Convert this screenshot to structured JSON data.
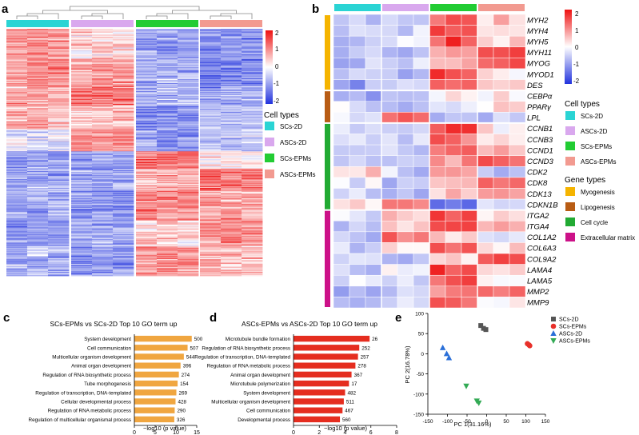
{
  "panel_labels": [
    "a",
    "b",
    "c",
    "d",
    "e"
  ],
  "colorscale": {
    "low": "#2233dd",
    "mid": "#ffffff",
    "high": "#ee1111"
  },
  "legend_a": {
    "title": "Cell types",
    "items": [
      {
        "label": "SCs-2D",
        "color": "#2ad4d4"
      },
      {
        "label": "ASCs-2D",
        "color": "#d9a8ee"
      },
      {
        "label": "SCs-EPMs",
        "color": "#22cc33"
      },
      {
        "label": "ASCs-EPMs",
        "color": "#f29a90"
      }
    ]
  },
  "legend_b": {
    "cell_title": "Cell types",
    "cell_items": [
      {
        "label": "SCs-2D",
        "color": "#2ad4d4"
      },
      {
        "label": "ASCs-2D",
        "color": "#d9a8ee"
      },
      {
        "label": "SCs-EPMs",
        "color": "#22cc33"
      },
      {
        "label": "ASCs-EPMs",
        "color": "#f29a90"
      }
    ],
    "gene_title": "Gene types",
    "gene_items": [
      {
        "label": "Myogenesis",
        "color": "#f5b400"
      },
      {
        "label": "Lipogenesis",
        "color": "#b85c14"
      },
      {
        "label": "Cell cycle",
        "color": "#22aa33"
      },
      {
        "label": "Extracellular matrix",
        "color": "#cc1188"
      }
    ]
  },
  "chart_data": [
    {
      "panel": "a",
      "type": "heatmap",
      "columns": 12,
      "column_groups": [
        "SCs-2D",
        "ASCs-2D",
        "SCs-EPMs",
        "ASCs-EPMs"
      ],
      "colorbar_ticks": [
        "2",
        "1",
        "0",
        "-1",
        "-2"
      ],
      "value_range": [
        -2,
        2
      ]
    },
    {
      "panel": "b",
      "type": "heatmap",
      "genes": [
        "MYH2",
        "MYH4",
        "MYH5",
        "MYH11",
        "MYOG",
        "MYOD1",
        "DES",
        "CEBPα",
        "PPARγ",
        "LPL",
        "CCNB1",
        "CCNB3",
        "CCND1",
        "CCND3",
        "CDK2",
        "CDK8",
        "CDK13",
        "CDKN1B",
        "ITGA2",
        "ITGA4",
        "COL1A2",
        "COL6A3",
        "COL9A2",
        "LAMA4",
        "LAMA5",
        "MMP2",
        "MMP9"
      ],
      "gene_group_sizes": [
        7,
        3,
        8,
        9
      ],
      "column_groups": [
        "SCs-2D",
        "ASCs-2D",
        "SCs-EPMs",
        "ASCs-EPMs"
      ],
      "colorbar_ticks": [
        "2",
        "1",
        "0",
        "-1",
        "-2"
      ],
      "value_range": [
        -2,
        2
      ],
      "group_means": [
        [
          -0.6,
          -0.4,
          1.4,
          0.4
        ],
        [
          -0.6,
          -0.5,
          1.5,
          0.3
        ],
        [
          -0.7,
          -0.3,
          1.5,
          0.6
        ],
        [
          -0.5,
          -0.6,
          0.6,
          1.6
        ],
        [
          -0.6,
          -0.5,
          0.7,
          1.6
        ],
        [
          -0.5,
          -0.5,
          1.5,
          0.3
        ],
        [
          -0.8,
          -0.5,
          1.2,
          0.4
        ],
        [
          -0.9,
          -0.8,
          0.1,
          0.1
        ],
        [
          -0.4,
          -0.7,
          -0.2,
          0.2
        ],
        [
          -0.1,
          1.2,
          -0.9,
          -0.6
        ],
        [
          -0.2,
          -0.4,
          1.5,
          0.2
        ],
        [
          -0.3,
          -0.5,
          1.3,
          0.4
        ],
        [
          -0.6,
          -0.3,
          1.1,
          0.8
        ],
        [
          -0.5,
          -0.5,
          0.9,
          1.2
        ],
        [
          0.3,
          -0.6,
          0.8,
          -0.6
        ],
        [
          -0.4,
          -0.5,
          0.6,
          1.3
        ],
        [
          -0.4,
          -0.6,
          0.5,
          1.0
        ],
        [
          0.3,
          1.1,
          -1.3,
          -0.3
        ],
        [
          -0.3,
          0.3,
          1.4,
          0.3
        ],
        [
          -0.5,
          0.4,
          1.5,
          0.5
        ],
        [
          -0.4,
          1.3,
          0.3,
          -0.5
        ],
        [
          -0.5,
          0.2,
          1.3,
          0.4
        ],
        [
          -0.4,
          -0.7,
          0.2,
          1.4
        ],
        [
          -0.5,
          -0.2,
          1.6,
          0.2
        ],
        [
          -0.3,
          -0.3,
          1.5,
          0.1
        ],
        [
          -0.7,
          -0.4,
          1.0,
          1.2
        ],
        [
          -0.6,
          -0.5,
          1.5,
          0.2
        ]
      ]
    },
    {
      "panel": "c",
      "type": "bar",
      "orientation": "horizontal",
      "title": "SCs-EPMs vs SCs-2D Top 10 GO term up",
      "xlabel": "−log10 (p value)",
      "xlim": [
        0,
        15
      ],
      "xticks": [
        "0",
        "5",
        "10",
        "15"
      ],
      "bar_color": "#f0a640",
      "categories": [
        "System development",
        "Cell communication",
        "Multicellular organism development",
        "Animal organ development",
        "Regulation of RNA biosynthetic process",
        "Tube morphogenesis",
        "Regulation of transcription, DNA-templated",
        "Cellular developmental process",
        "Regulation of RNA metabolic process",
        "Regulation of multicellular organismal process"
      ],
      "values": [
        13.8,
        12.8,
        11.9,
        11.1,
        10.7,
        10.4,
        10.1,
        9.9,
        9.7,
        9.6
      ],
      "counts": [
        "500",
        "507",
        "544",
        "396",
        "274",
        "154",
        "269",
        "428",
        "290",
        "326"
      ]
    },
    {
      "panel": "d",
      "type": "bar",
      "orientation": "horizontal",
      "title": "ASCs-EPMs vs ASCs-2D Top 10 GO term up",
      "xlabel": "−log10 (p value)",
      "xlim": [
        0,
        8
      ],
      "xticks": [
        "0",
        "2",
        "4",
        "6",
        "8"
      ],
      "bar_color": "#e52d1f",
      "categories": [
        "Microtubule bundle formation",
        "Regulation of RNA biosynthetic process",
        "Regulation of transcription, DNA-templated",
        "Regulation of RNA metabolic process",
        "Animal organ development",
        "Microtubule polymerization",
        "System development",
        "Multicellular organism development",
        "Cell communication",
        "Developmental process"
      ],
      "values": [
        5.9,
        5.1,
        5.0,
        4.8,
        4.5,
        4.3,
        4.0,
        3.9,
        3.8,
        3.6
      ],
      "counts": [
        "26",
        "252",
        "257",
        "278",
        "367",
        "17",
        "482",
        "511",
        "467",
        "560"
      ]
    },
    {
      "panel": "e",
      "type": "scatter",
      "xlabel": "PC 1(31.16%)",
      "ylabel": "PC 2(16.78%)",
      "xlim": [
        -150,
        150
      ],
      "ylim": [
        -150,
        100
      ],
      "xticks": [
        -150,
        -100,
        -50,
        0,
        50,
        100,
        150
      ],
      "yticks": [
        -150,
        -100,
        -50,
        0,
        50,
        100
      ],
      "series": [
        {
          "name": "SCs-2D",
          "color": "#555555",
          "marker": "square",
          "points": [
            [
              -15,
              70
            ],
            [
              -8,
              63
            ],
            [
              -2,
              60
            ]
          ]
        },
        {
          "name": "SCs-EPMs",
          "color": "#e8302a",
          "marker": "circle",
          "points": [
            [
              104,
              25
            ],
            [
              108,
              22
            ],
            [
              110,
              20
            ]
          ]
        },
        {
          "name": "ASCs-2D",
          "color": "#2a6fd8",
          "marker": "triangle-up",
          "points": [
            [
              -112,
              15
            ],
            [
              -102,
              0
            ],
            [
              -96,
              -10
            ]
          ]
        },
        {
          "name": "ASCs-EPMs",
          "color": "#33aa55",
          "marker": "triangle-down",
          "points": [
            [
              -52,
              -80
            ],
            [
              -25,
              -117
            ],
            [
              -20,
              -122
            ]
          ]
        }
      ]
    }
  ]
}
